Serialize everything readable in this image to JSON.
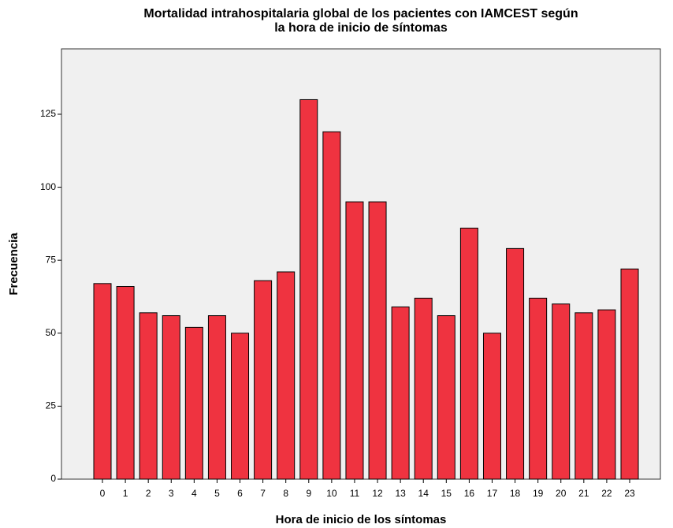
{
  "chart_data": {
    "type": "bar",
    "title": [
      "Mortalidad intrahospitalaria global de los pacientes con IAMCEST según",
      "la hora de inicio de síntomas"
    ],
    "x_label": "Hora de inicio de los síntomas",
    "y_label": "Frecuencia",
    "categories": [
      "0",
      "1",
      "2",
      "3",
      "4",
      "5",
      "6",
      "7",
      "8",
      "9",
      "10",
      "11",
      "12",
      "13",
      "14",
      "15",
      "16",
      "17",
      "18",
      "19",
      "20",
      "21",
      "22",
      "23"
    ],
    "values": [
      67,
      66,
      57,
      56,
      52,
      56,
      50,
      68,
      71,
      130,
      119,
      95,
      95,
      59,
      62,
      56,
      86,
      50,
      79,
      62,
      60,
      57,
      58,
      72
    ],
    "color": "#ef3340",
    "ylim": [
      0,
      147.4
    ],
    "yticks": [
      0,
      25,
      50,
      75,
      100,
      125
    ],
    "grid": false
  }
}
